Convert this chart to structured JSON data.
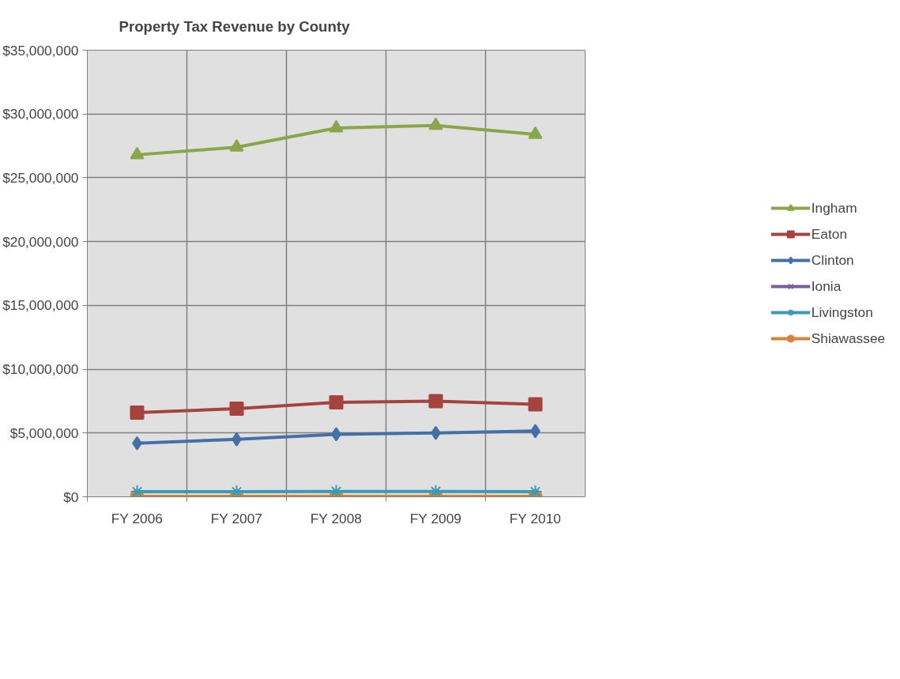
{
  "chart_data": {
    "type": "line",
    "title": "Property Tax Revenue by County",
    "categories": [
      "FY 2006",
      "FY 2007",
      "FY 2008",
      "FY 2009",
      "FY 2010"
    ],
    "series": [
      {
        "name": "Ingham",
        "color": "#8aa64b",
        "marker": "triangle",
        "values": [
          26800000,
          27400000,
          28900000,
          29100000,
          28400000
        ]
      },
      {
        "name": "Eaton",
        "color": "#a5433f",
        "marker": "square",
        "values": [
          6600000,
          6900000,
          7400000,
          7500000,
          7250000
        ]
      },
      {
        "name": "Clinton",
        "color": "#4470a8",
        "marker": "diamond",
        "values": [
          4200000,
          4500000,
          4900000,
          5000000,
          5150000
        ]
      },
      {
        "name": "Ionia",
        "color": "#7a5c99",
        "marker": "x",
        "values": [
          null,
          null,
          null,
          null,
          null
        ]
      },
      {
        "name": "Livingston",
        "color": "#3a9bb5",
        "marker": "cross",
        "values": [
          400000,
          400000,
          420000,
          420000,
          400000
        ]
      },
      {
        "name": "Shiawassee",
        "color": "#dd8139",
        "marker": "circle",
        "values": [
          30000,
          30000,
          30000,
          30000,
          30000
        ]
      }
    ],
    "ylim": [
      0,
      35000000
    ],
    "yticks": [
      {
        "value": 0,
        "label": "$0"
      },
      {
        "value": 5000000,
        "label": "$5,000,000"
      },
      {
        "value": 10000000,
        "label": "$10,000,000"
      },
      {
        "value": 15000000,
        "label": "$15,000,000"
      },
      {
        "value": 20000000,
        "label": "$20,000,000"
      },
      {
        "value": 25000000,
        "label": "$25,000,000"
      },
      {
        "value": 30000000,
        "label": "$30,000,000"
      },
      {
        "value": 35000000,
        "label": "$35,000,000"
      }
    ],
    "grid": true,
    "legend": "right",
    "line_style": "solid"
  }
}
